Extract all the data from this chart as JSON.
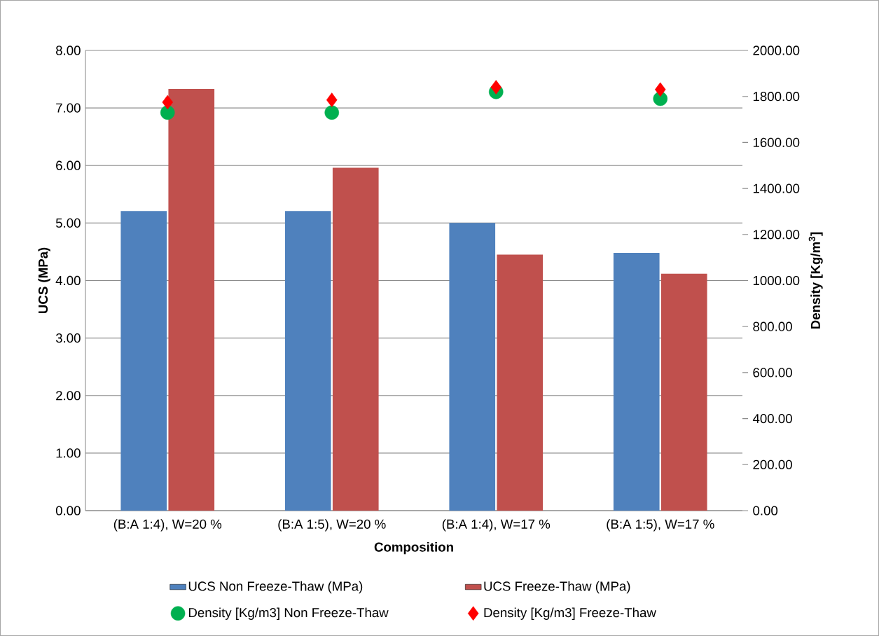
{
  "chart_data": {
    "type": "bar",
    "xlabel": "Composition",
    "ylabel": "UCS (MPa)",
    "y2label": "Density [Kg/m$^{3}$]",
    "categories": [
      "(B:A 1:4), W=20 %",
      "(B:A 1:5), W=20 %",
      "(B:A 1:4), W=17 %",
      "(B:A 1:5), W=17 %"
    ],
    "series": [
      {
        "name": "UCS Non Freeze-Thaw (MPa)",
        "type": "bar",
        "axis": "y",
        "color": "#4f81bd",
        "values": [
          5.21,
          5.21,
          5.0,
          4.48
        ]
      },
      {
        "name": "UCS Freeze-Thaw (MPa)",
        "type": "bar",
        "axis": "y",
        "color": "#c0504d",
        "values": [
          7.33,
          5.96,
          4.45,
          4.12
        ]
      },
      {
        "name": "Density [Kg/m3] Non Freeze-Thaw",
        "type": "scatter",
        "axis": "y2",
        "marker": "circle",
        "color": "#00b050",
        "values": [
          1730,
          1730,
          1820,
          1790
        ]
      },
      {
        "name": "Density [Kg/m3] Freeze-Thaw",
        "type": "scatter",
        "axis": "y2",
        "marker": "diamond",
        "color": "#ff0000",
        "values": [
          1775,
          1785,
          1840,
          1830
        ]
      }
    ],
    "ylim": [
      0,
      8
    ],
    "yticks": [
      {
        "value": 0,
        "label": "0.00"
      },
      {
        "value": 1,
        "label": "1.00"
      },
      {
        "value": 2,
        "label": "2.00"
      },
      {
        "value": 3,
        "label": "3.00"
      },
      {
        "value": 4,
        "label": "4.00"
      },
      {
        "value": 5,
        "label": "5.00"
      },
      {
        "value": 6,
        "label": "6.00"
      },
      {
        "value": 7,
        "label": "7.00"
      },
      {
        "value": 8,
        "label": "8.00"
      }
    ],
    "y2lim": [
      0,
      2000
    ],
    "y2ticks": [
      {
        "value": 0,
        "label": "0.00"
      },
      {
        "value": 200,
        "label": "200.00"
      },
      {
        "value": 400,
        "label": "400.00"
      },
      {
        "value": 600,
        "label": "600.00"
      },
      {
        "value": 800,
        "label": "800.00"
      },
      {
        "value": 1000,
        "label": "1000.00"
      },
      {
        "value": 1200,
        "label": "1200.00"
      },
      {
        "value": 1400,
        "label": "1400.00"
      },
      {
        "value": 1600,
        "label": "1600.00"
      },
      {
        "value": 1800,
        "label": "1800.00"
      },
      {
        "value": 2000,
        "label": "2000.00"
      }
    ],
    "grid": "y",
    "legend": "bottom"
  }
}
